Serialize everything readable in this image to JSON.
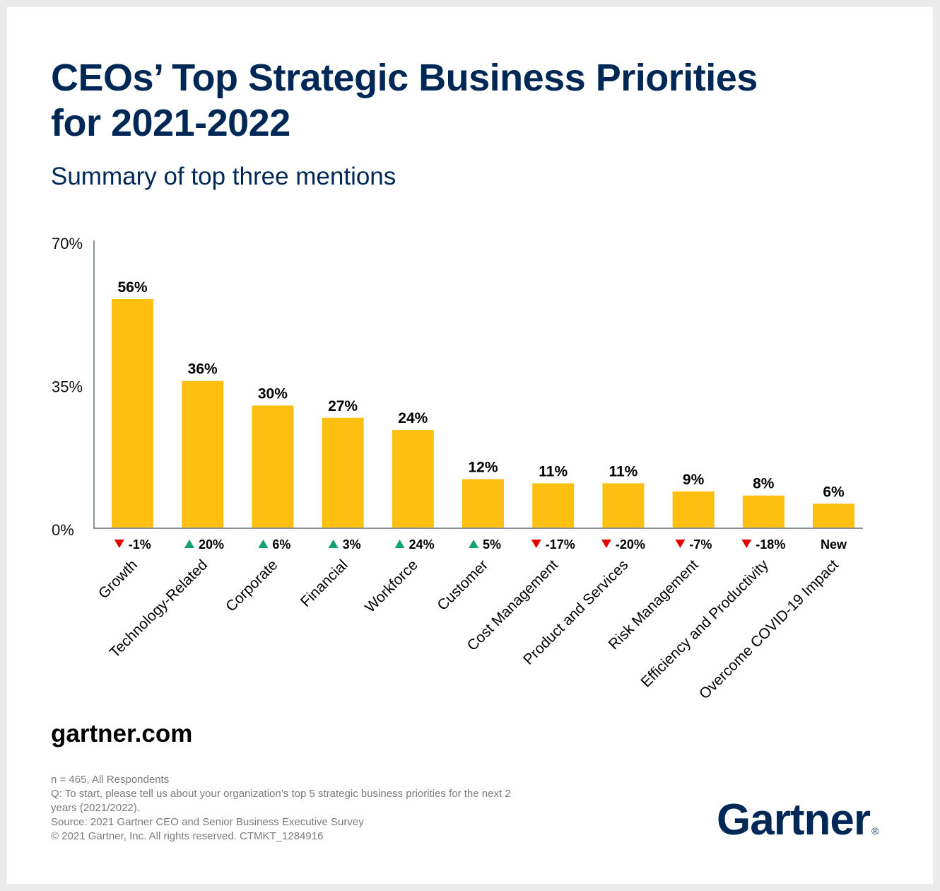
{
  "header": {
    "title": "CEOs’ Top Strategic Business Priorities for 2021-2022",
    "subtitle": "Summary of top three mentions"
  },
  "colors": {
    "bar": "#FDC010",
    "title": "#002856",
    "up": "#10A36B",
    "down": "#E00000",
    "axis": "#8a9496"
  },
  "chart_data": {
    "type": "bar",
    "title": "CEOs’ Top Strategic Business Priorities for 2021-2022",
    "subtitle": "Summary of top three mentions",
    "xlabel": "",
    "ylabel": "",
    "ylim": [
      0,
      70
    ],
    "yticks": [
      0,
      35,
      70
    ],
    "ytick_labels": [
      "0%",
      "35%",
      "70%"
    ],
    "grid": false,
    "legend": "none",
    "categories": [
      "Growth",
      "Technology-Related",
      "Corporate",
      "Financial",
      "Workforce",
      "Customer",
      "Cost Management",
      "Product and Services",
      "Risk Management",
      "Efficiency and Productivity",
      "Overcome COVID-19 Impact"
    ],
    "values": [
      56,
      36,
      30,
      27,
      24,
      12,
      11,
      11,
      9,
      8,
      6
    ],
    "value_labels": [
      "56%",
      "36%",
      "30%",
      "27%",
      "24%",
      "12%",
      "11%",
      "11%",
      "9%",
      "8%",
      "6%"
    ],
    "changes": [
      {
        "direction": "down",
        "label": "-1%"
      },
      {
        "direction": "up",
        "label": "20%"
      },
      {
        "direction": "up",
        "label": "6%"
      },
      {
        "direction": "up",
        "label": "3%"
      },
      {
        "direction": "up",
        "label": "24%"
      },
      {
        "direction": "up",
        "label": "5%"
      },
      {
        "direction": "down",
        "label": "-17%"
      },
      {
        "direction": "down",
        "label": "-20%"
      },
      {
        "direction": "down",
        "label": "-7%"
      },
      {
        "direction": "down",
        "label": "-18%"
      },
      {
        "direction": "new",
        "label": "New"
      }
    ]
  },
  "footer": {
    "site": "gartner.com",
    "notes": [
      "n = 465, All Respondents",
      "Q: To start, please tell us about your organization’s top 5 strategic business priorities for the next 2 years (2021/2022).",
      "Source: 2021 Gartner CEO and Senior Business Executive Survey",
      "© 2021 Gartner, Inc. All rights reserved. CTMKT_1284916"
    ],
    "logo": "Gartner",
    "logo_mark": "®"
  }
}
